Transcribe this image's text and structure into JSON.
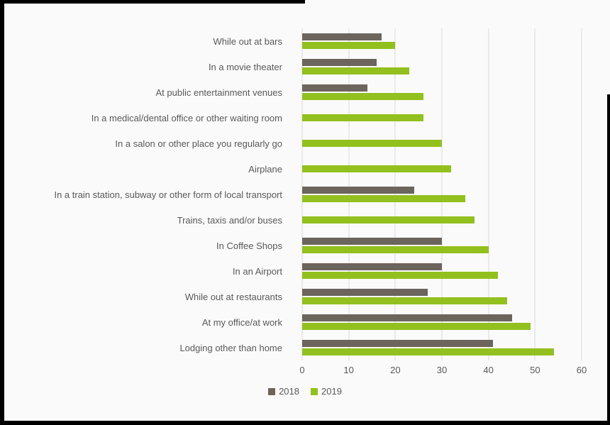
{
  "chart_data": {
    "type": "bar",
    "orientation": "horizontal",
    "title": "",
    "xlabel": "",
    "ylabel": "",
    "xlim": [
      0,
      60
    ],
    "xticks": [
      0,
      10,
      20,
      30,
      40,
      50,
      60
    ],
    "grid": true,
    "legend_position": "bottom",
    "categories": [
      "While out at bars",
      "In a movie theater",
      "At public entertainment venues",
      "In a medical/dental office or other waiting room",
      "In a salon or other place you regularly go",
      "Airplane",
      "In a train station, subway or other form of local transport",
      "Trains, taxis and/or buses",
      "In Coffee Shops",
      "In an Airport",
      "While out at restaurants",
      "At my office/at work",
      "Lodging other than home"
    ],
    "series": [
      {
        "name": "2018",
        "color": "#6b655d",
        "values": [
          17,
          16,
          14,
          null,
          null,
          null,
          24,
          null,
          30,
          30,
          27,
          45,
          41
        ]
      },
      {
        "name": "2019",
        "color": "#92c01e",
        "values": [
          20,
          23,
          26,
          26,
          30,
          32,
          35,
          37,
          40,
          42,
          44,
          49,
          54
        ]
      }
    ]
  },
  "colors": {
    "gridline": "#d9d9d9",
    "text": "#595959"
  }
}
